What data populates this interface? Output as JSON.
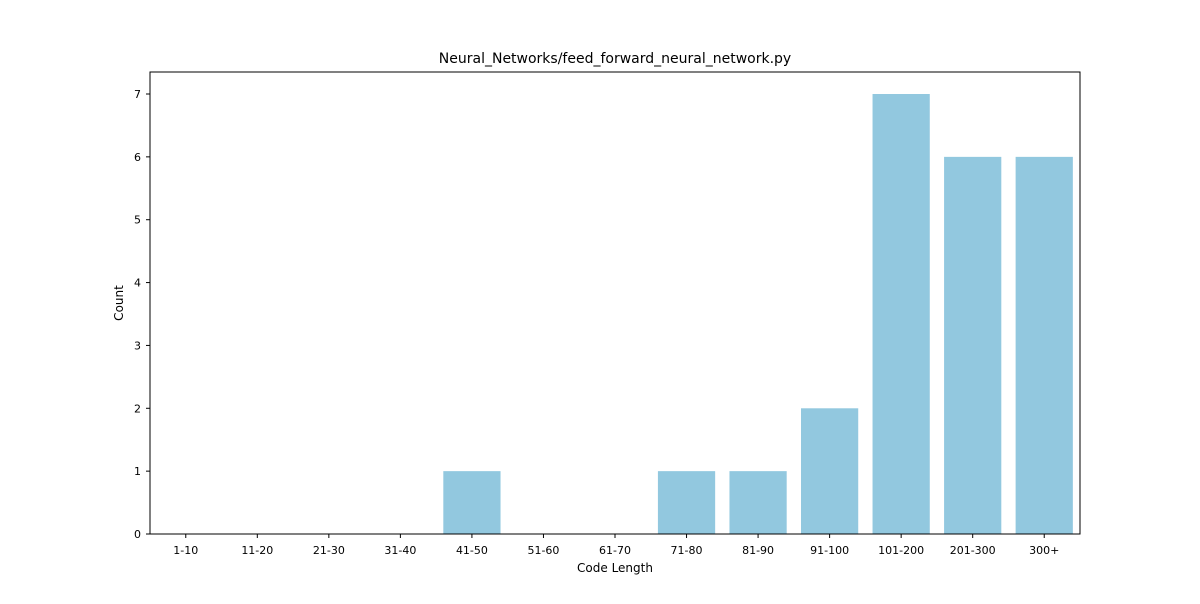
{
  "chart_data": {
    "type": "bar",
    "title": "Neural_Networks/feed_forward_neural_network.py",
    "xlabel": "Code Length",
    "ylabel": "Count",
    "categories": [
      "1-10",
      "11-20",
      "21-30",
      "31-40",
      "41-50",
      "51-60",
      "61-70",
      "71-80",
      "81-90",
      "91-100",
      "101-200",
      "201-300",
      "300+"
    ],
    "values": [
      0,
      0,
      0,
      0,
      1,
      0,
      0,
      1,
      1,
      2,
      7,
      6,
      6
    ],
    "ylim": [
      0,
      7.35
    ],
    "yticks": [
      0,
      1,
      2,
      3,
      4,
      5,
      6,
      7
    ],
    "bar_color": "#92c8df",
    "grid": false,
    "legend": "none"
  }
}
